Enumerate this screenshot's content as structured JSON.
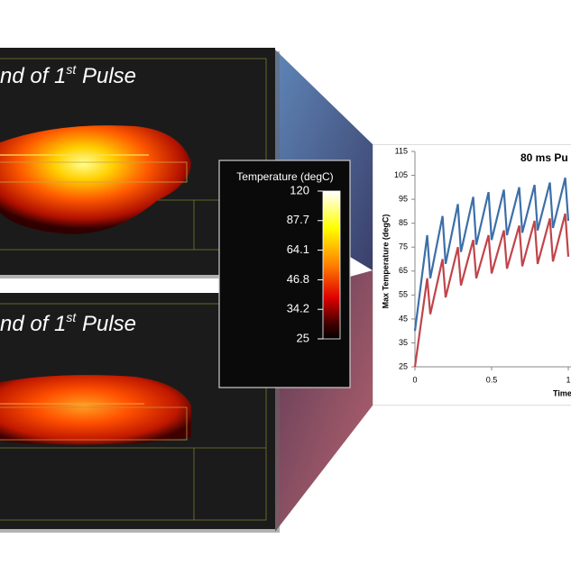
{
  "panels": [
    {
      "title": {
        "text": "nd of 1",
        "sup": "st",
        "tail": " Pulse"
      }
    },
    {
      "title": {
        "text": "nd of 1",
        "sup": "st",
        "tail": " Pulse"
      }
    }
  ],
  "colorbar": {
    "title": "Temperature (degC)",
    "lim": [
      25,
      120
    ],
    "log": true,
    "ticks": [
      120,
      87.7,
      64.1,
      46.8,
      34.2,
      25
    ]
  },
  "chart_data": {
    "type": "line",
    "title": "80 ms Pu",
    "x_label": "Time",
    "y_label": "Max Temperature (degC)",
    "x": [
      0,
      0.08,
      0.1,
      0.18,
      0.2,
      0.28,
      0.3,
      0.38,
      0.4,
      0.48,
      0.5,
      0.58,
      0.6,
      0.68,
      0.7,
      0.78,
      0.8,
      0.88,
      0.9,
      0.98,
      1.0
    ],
    "series": [
      {
        "color": "#3c6fa8",
        "values": [
          40,
          80,
          62,
          88,
          68,
          93,
          73,
          96,
          76,
          98,
          78,
          99,
          80,
          100,
          81,
          101,
          82,
          102,
          83,
          104,
          86
        ]
      },
      {
        "color": "#c0444a",
        "values": [
          25,
          62,
          47,
          70,
          54,
          75,
          59,
          78,
          62,
          80,
          64,
          82,
          66,
          84,
          67,
          86,
          68,
          87,
          69,
          89,
          71
        ]
      }
    ],
    "xlim": [
      0,
      1.5
    ],
    "xticks": [
      0,
      0.5,
      1
    ],
    "ylim": [
      25,
      115
    ],
    "yticks": [
      25,
      35,
      45,
      55,
      65,
      75,
      85,
      95,
      105,
      115
    ]
  }
}
